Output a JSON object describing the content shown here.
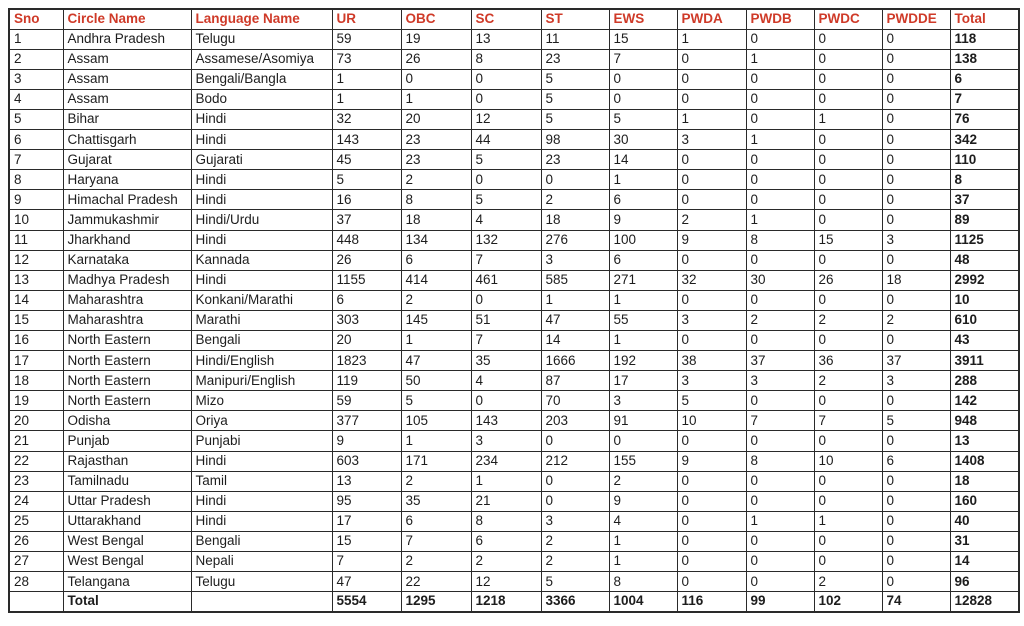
{
  "colors": {
    "header_text": "#cf3a28",
    "body_text": "#1d1d1d",
    "border": "#2a2a2a",
    "background": "#ffffff"
  },
  "table": {
    "columns": [
      "Sno",
      "Circle Name",
      "Language Name",
      "UR",
      "OBC",
      "SC",
      "ST",
      "EWS",
      "PWDA",
      "PWDB",
      "PWDC",
      "PWDDE",
      "Total"
    ],
    "rows": [
      [
        "1",
        "Andhra Pradesh",
        "Telugu",
        "59",
        "19",
        "13",
        "11",
        "15",
        "1",
        "0",
        "0",
        "0",
        "118"
      ],
      [
        "2",
        "Assam",
        "Assamese/Asomiya",
        "73",
        "26",
        "8",
        "23",
        "7",
        "0",
        "1",
        "0",
        "0",
        "138"
      ],
      [
        "3",
        "Assam",
        "Bengali/Bangla",
        "1",
        "0",
        "0",
        "5",
        "0",
        "0",
        "0",
        "0",
        "0",
        "6"
      ],
      [
        "4",
        "Assam",
        "Bodo",
        "1",
        "1",
        "0",
        "5",
        "0",
        "0",
        "0",
        "0",
        "0",
        "7"
      ],
      [
        "5",
        "Bihar",
        "Hindi",
        "32",
        "20",
        "12",
        "5",
        "5",
        "1",
        "0",
        "1",
        "0",
        "76"
      ],
      [
        "6",
        "Chattisgarh",
        "Hindi",
        "143",
        "23",
        "44",
        "98",
        "30",
        "3",
        "1",
        "0",
        "0",
        "342"
      ],
      [
        "7",
        "Gujarat",
        "Gujarati",
        "45",
        "23",
        "5",
        "23",
        "14",
        "0",
        "0",
        "0",
        "0",
        "110"
      ],
      [
        "8",
        "Haryana",
        "Hindi",
        "5",
        "2",
        "0",
        "0",
        "1",
        "0",
        "0",
        "0",
        "0",
        "8"
      ],
      [
        "9",
        "Himachal Pradesh",
        "Hindi",
        "16",
        "8",
        "5",
        "2",
        "6",
        "0",
        "0",
        "0",
        "0",
        "37"
      ],
      [
        "10",
        "Jammukashmir",
        "Hindi/Urdu",
        "37",
        "18",
        "4",
        "18",
        "9",
        "2",
        "1",
        "0",
        "0",
        "89"
      ],
      [
        "11",
        "Jharkhand",
        "Hindi",
        "448",
        "134",
        "132",
        "276",
        "100",
        "9",
        "8",
        "15",
        "3",
        "1125"
      ],
      [
        "12",
        "Karnataka",
        "Kannada",
        "26",
        "6",
        "7",
        "3",
        "6",
        "0",
        "0",
        "0",
        "0",
        "48"
      ],
      [
        "13",
        "Madhya Pradesh",
        "Hindi",
        "1155",
        "414",
        "461",
        "585",
        "271",
        "32",
        "30",
        "26",
        "18",
        "2992"
      ],
      [
        "14",
        "Maharashtra",
        "Konkani/Marathi",
        "6",
        "2",
        "0",
        "1",
        "1",
        "0",
        "0",
        "0",
        "0",
        "10"
      ],
      [
        "15",
        "Maharashtra",
        "Marathi",
        "303",
        "145",
        "51",
        "47",
        "55",
        "3",
        "2",
        "2",
        "2",
        "610"
      ],
      [
        "16",
        "North Eastern",
        "Bengali",
        "20",
        "1",
        "7",
        "14",
        "1",
        "0",
        "0",
        "0",
        "0",
        "43"
      ],
      [
        "17",
        "North Eastern",
        "Hindi/English",
        "1823",
        "47",
        "35",
        "1666",
        "192",
        "38",
        "37",
        "36",
        "37",
        "3911"
      ],
      [
        "18",
        "North Eastern",
        "Manipuri/English",
        "119",
        "50",
        "4",
        "87",
        "17",
        "3",
        "3",
        "2",
        "3",
        "288"
      ],
      [
        "19",
        "North Eastern",
        "Mizo",
        "59",
        "5",
        "0",
        "70",
        "3",
        "5",
        "0",
        "0",
        "0",
        "142"
      ],
      [
        "20",
        "Odisha",
        "Oriya",
        "377",
        "105",
        "143",
        "203",
        "91",
        "10",
        "7",
        "7",
        "5",
        "948"
      ],
      [
        "21",
        "Punjab",
        "Punjabi",
        "9",
        "1",
        "3",
        "0",
        "0",
        "0",
        "0",
        "0",
        "0",
        "13"
      ],
      [
        "22",
        "Rajasthan",
        "Hindi",
        "603",
        "171",
        "234",
        "212",
        "155",
        "9",
        "8",
        "10",
        "6",
        "1408"
      ],
      [
        "23",
        "Tamilnadu",
        "Tamil",
        "13",
        "2",
        "1",
        "0",
        "2",
        "0",
        "0",
        "0",
        "0",
        "18"
      ],
      [
        "24",
        "Uttar Pradesh",
        "Hindi",
        "95",
        "35",
        "21",
        "0",
        "9",
        "0",
        "0",
        "0",
        "0",
        "160"
      ],
      [
        "25",
        "Uttarakhand",
        "Hindi",
        "17",
        "6",
        "8",
        "3",
        "4",
        "0",
        "1",
        "1",
        "0",
        "40"
      ],
      [
        "26",
        "West Bengal",
        "Bengali",
        "15",
        "7",
        "6",
        "2",
        "1",
        "0",
        "0",
        "0",
        "0",
        "31"
      ],
      [
        "27",
        "West Bengal",
        "Nepali",
        "7",
        "2",
        "2",
        "2",
        "1",
        "0",
        "0",
        "0",
        "0",
        "14"
      ],
      [
        "28",
        "Telangana",
        "Telugu",
        "47",
        "22",
        "12",
        "5",
        "8",
        "0",
        "0",
        "2",
        "0",
        "96"
      ]
    ],
    "total_row": [
      "",
      "Total",
      "",
      "5554",
      "1295",
      "1218",
      "3366",
      "1004",
      "116",
      "99",
      "102",
      "74",
      "12828"
    ]
  }
}
